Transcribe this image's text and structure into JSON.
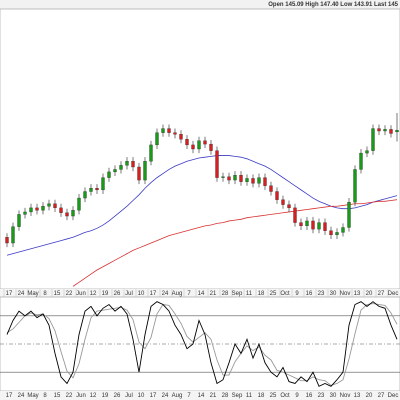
{
  "chart_data": [
    {
      "type": "candlestick",
      "annotation": "Open 145.09  High 147.40  Low 143.91  Last 145",
      "categories": [
        "17",
        null,
        "24",
        null,
        "May",
        null,
        "8",
        null,
        "15",
        null,
        "22",
        null,
        "Jun",
        null,
        "12",
        null,
        "19",
        null,
        "26",
        null,
        "Jul",
        null,
        "10",
        null,
        "17",
        null,
        "24",
        null,
        "Aug",
        null,
        "7",
        null,
        "14",
        null,
        "21",
        null,
        "28",
        null,
        "Sep",
        null,
        "11",
        null,
        "18",
        null,
        "25",
        null,
        "Oct",
        null,
        "9",
        null,
        "16",
        null,
        "23",
        null,
        "30",
        null,
        "Nov",
        null,
        "13",
        null,
        "20",
        null,
        "27",
        null,
        "Dec",
        null
      ],
      "open": [
        132.2,
        131.5,
        133.5,
        135,
        135.3,
        135.8,
        135.5,
        136,
        136.3,
        135.8,
        135.2,
        134.8,
        135.5,
        137,
        137.8,
        138.2,
        138,
        139.5,
        140.2,
        140.5,
        141,
        141.5,
        140.8,
        139.2,
        141.5,
        143.5,
        145,
        145.5,
        145,
        144.8,
        144.2,
        143.5,
        143,
        144,
        143.6,
        142.8,
        139.5,
        139.6,
        139.2,
        139.8,
        139,
        139.4,
        138.8,
        139.5,
        138.5,
        137.8,
        136.8,
        136.2,
        135.8,
        134,
        133.6,
        134.2,
        133.2,
        134,
        133,
        132.5,
        132.8,
        133.4,
        136.5,
        140.5,
        142.5,
        142.8,
        145.5,
        145.2,
        145.4,
        145.09
      ],
      "high": [
        132.7,
        134.0,
        135.5,
        135.8,
        136.3,
        136.3,
        136.5,
        136.8,
        136.8,
        136.3,
        135.7,
        136.0,
        137.5,
        138.3,
        138.7,
        138.7,
        140.0,
        140.7,
        141.0,
        141.5,
        142.0,
        142.0,
        141.3,
        142.0,
        144.0,
        145.5,
        146.0,
        146.0,
        145.5,
        145.3,
        144.7,
        144.0,
        144.5,
        144.5,
        144.1,
        143.3,
        140.1,
        140.1,
        140.3,
        140.3,
        139.9,
        139.9,
        140.0,
        140.0,
        139.0,
        138.3,
        137.3,
        136.7,
        136.3,
        134.5,
        134.7,
        134.7,
        134.5,
        134.5,
        133.5,
        133.3,
        133.9,
        137.0,
        141.0,
        143.0,
        143.3,
        146.0,
        146.0,
        145.9,
        145.9,
        147.4
      ],
      "low": [
        131.0,
        131.0,
        133.0,
        134.5,
        134.8,
        135.0,
        135.0,
        135.5,
        135.3,
        134.7,
        134.3,
        134.3,
        135.0,
        136.5,
        137.3,
        137.5,
        137.5,
        139.0,
        139.7,
        140.0,
        140.5,
        140.3,
        138.7,
        138.7,
        141.0,
        143.0,
        144.5,
        144.5,
        144.3,
        143.7,
        143.0,
        142.5,
        142.5,
        143.1,
        142.3,
        139.0,
        139.0,
        138.7,
        138.7,
        138.5,
        138.5,
        138.3,
        138.3,
        138.0,
        137.3,
        136.3,
        135.7,
        135.3,
        133.5,
        133.1,
        133.1,
        132.7,
        132.7,
        132.5,
        132.0,
        132.0,
        132.3,
        132.9,
        136.0,
        140.0,
        142.0,
        142.3,
        144.7,
        144.7,
        144.4,
        143.91
      ],
      "close": [
        131.5,
        133.5,
        135,
        135.3,
        135.8,
        135.5,
        136,
        136.3,
        135.8,
        135.2,
        134.8,
        135.5,
        137,
        137.8,
        138.2,
        138,
        139.5,
        140.2,
        140.5,
        141,
        141.5,
        140.8,
        139.2,
        141.5,
        143.5,
        145,
        145.5,
        145,
        144.8,
        144.2,
        143.5,
        143,
        144,
        143.6,
        142.8,
        139.5,
        139.6,
        139.2,
        139.8,
        139,
        139.4,
        138.8,
        139.5,
        138.5,
        137.8,
        136.8,
        136.2,
        135.8,
        134,
        133.6,
        134.2,
        133.2,
        134,
        133,
        132.5,
        132.8,
        133.4,
        136.5,
        140.5,
        142.5,
        142.8,
        145.5,
        145.2,
        145.4,
        144.9,
        145.3
      ],
      "up_color": "#1a9a1a",
      "down_color": "#d42020",
      "overlays": [
        {
          "color": "#3a3ac8",
          "values": [
            130,
            130.2,
            130.4,
            130.6,
            130.8,
            131,
            131.2,
            131.4,
            131.6,
            131.8,
            132,
            132.2,
            132.5,
            132.8,
            133,
            133.3,
            133.7,
            134.2,
            134.8,
            135.4,
            136,
            136.7,
            137.4,
            138.2,
            138.9,
            139.5,
            140,
            140.5,
            140.9,
            141.2,
            141.5,
            141.7,
            141.9,
            142,
            142.1,
            142.2,
            142.2,
            142.2,
            142.1,
            142,
            141.8,
            141.5,
            141.2,
            140.9,
            140.5,
            140,
            139.5,
            139,
            138.5,
            138,
            137.5,
            137,
            136.6,
            136.3,
            136,
            135.8,
            135.7,
            135.7,
            135.8,
            136,
            136.2,
            136.5,
            136.7,
            136.9,
            137.1,
            137.3
          ]
        },
        {
          "color": "#d83030",
          "values": [
            null,
            null,
            null,
            null,
            null,
            null,
            null,
            null,
            null,
            null,
            null,
            126.2,
            126.7,
            127.2,
            127.7,
            128.2,
            128.6,
            129,
            129.4,
            129.8,
            130.2,
            130.6,
            130.9,
            131.2,
            131.5,
            131.8,
            132.1,
            132.4,
            132.6,
            132.8,
            133,
            133.2,
            133.4,
            133.6,
            133.7,
            133.9,
            134,
            134.2,
            134.3,
            134.4,
            134.6,
            134.7,
            134.8,
            134.9,
            135,
            135.1,
            135.2,
            135.3,
            135.4,
            135.5,
            135.6,
            135.7,
            135.8,
            135.9,
            136,
            136,
            136.1,
            136.2,
            136.3,
            136.3,
            136.4,
            136.5,
            136.6,
            136.6,
            136.7,
            136.8
          ]
        }
      ],
      "ylim": [
        126,
        160
      ]
    },
    {
      "type": "line",
      "series": [
        {
          "color": "#000000",
          "values": [
            60,
            75,
            85,
            80,
            85,
            78,
            82,
            70,
            40,
            15,
            8,
            20,
            60,
            85,
            90,
            80,
            88,
            92,
            85,
            90,
            82,
            55,
            20,
            60,
            90,
            95,
            92,
            85,
            70,
            60,
            45,
            50,
            75,
            60,
            30,
            8,
            12,
            30,
            50,
            40,
            55,
            35,
            50,
            30,
            20,
            15,
            25,
            10,
            8,
            15,
            10,
            20,
            5,
            8,
            5,
            12,
            20,
            70,
            92,
            95,
            90,
            95,
            90,
            88,
            70,
            55
          ]
        },
        {
          "color": "#999999",
          "values": [
            62,
            66,
            73,
            80,
            83,
            81,
            82,
            77,
            64,
            42,
            21,
            14,
            29,
            55,
            78,
            85,
            86,
            87,
            88,
            89,
            86,
            76,
            52,
            45,
            57,
            82,
            92,
            91,
            82,
            72,
            58,
            52,
            57,
            62,
            55,
            33,
            17,
            17,
            31,
            40,
            48,
            43,
            47,
            38,
            33,
            22,
            20,
            17,
            14,
            11,
            11,
            15,
            12,
            11,
            6,
            8,
            12,
            34,
            61,
            86,
            92,
            93,
            92,
            91,
            83,
            71
          ]
        }
      ],
      "ylim": [
        0,
        100
      ],
      "levels": [
        20,
        50,
        80
      ]
    }
  ]
}
